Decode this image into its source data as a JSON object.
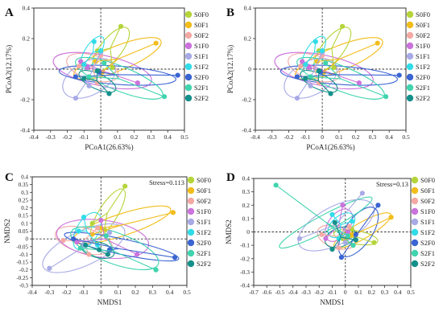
{
  "figure": {
    "legend_labels": [
      "S0F0",
      "S0F1",
      "S0F2",
      "S1F0",
      "S1F1",
      "S1F2",
      "S2F0",
      "S2F1",
      "S2F2"
    ],
    "legend_colors": [
      "#b5d43a",
      "#f2bd1a",
      "#f4a9a4",
      "#cc72dc",
      "#a8aae6",
      "#30dce8",
      "#3a64d2",
      "#40d4ae",
      "#14908a"
    ]
  },
  "chart_data": [
    {
      "panel": "A",
      "type": "scatter",
      "method": "PCoA",
      "xlabel": "PCoA1(26.63%)",
      "ylabel": "PCoA2(12.17%)",
      "xlim": [
        -0.4,
        0.5
      ],
      "ylim": [
        -0.4,
        0.4
      ],
      "xticks": [
        "-0.4",
        "-0.3",
        "-0.2",
        "-0.1",
        "0",
        "0.1",
        "0.2",
        "0.3",
        "0.4",
        "0.5"
      ],
      "yticks": [
        "0.4",
        "0.2",
        "0",
        "-0.2",
        "-0.4"
      ],
      "stress": null,
      "reference_lines": {
        "x": 0,
        "y": 0
      },
      "groups": [
        {
          "label": "S0F0",
          "points": [
            [
              0.12,
              0.28
            ],
            [
              0.07,
              0.01
            ],
            [
              -0.02,
              0.12
            ]
          ],
          "ellipse": {
            "cx": 0.06,
            "cy": 0.13,
            "rx": 0.16,
            "ry": 0.07,
            "angle_deg": 52
          }
        },
        {
          "label": "S0F1",
          "points": [
            [
              0.33,
              0.17
            ],
            [
              -0.03,
              0.05
            ],
            [
              0.01,
              -0.02
            ]
          ],
          "ellipse": {
            "cx": 0.1,
            "cy": 0.07,
            "rx": 0.28,
            "ry": 0.08,
            "angle_deg": 22
          }
        },
        {
          "label": "S0F2",
          "points": [
            [
              -0.13,
              0.02
            ],
            [
              -0.02,
              -0.09
            ],
            [
              0.0,
              0.09
            ]
          ],
          "ellipse": {
            "cx": -0.05,
            "cy": 0.01,
            "rx": 0.16,
            "ry": 0.08,
            "angle_deg": -18
          }
        },
        {
          "label": "S1F0",
          "points": [
            [
              0.22,
              -0.09
            ],
            [
              -0.08,
              0.01
            ],
            [
              -0.12,
              0.05
            ]
          ],
          "ellipse": {
            "cx": 0.01,
            "cy": -0.01,
            "rx": 0.3,
            "ry": 0.1,
            "angle_deg": -12
          }
        },
        {
          "label": "S1F1",
          "points": [
            [
              -0.15,
              -0.19
            ],
            [
              -0.07,
              -0.11
            ],
            [
              0.0,
              0.11
            ]
          ],
          "ellipse": {
            "cx": -0.07,
            "cy": -0.06,
            "rx": 0.17,
            "ry": 0.11,
            "angle_deg": 28
          }
        },
        {
          "label": "S1F2",
          "points": [
            [
              -0.04,
              0.18
            ],
            [
              0.0,
              0.12
            ],
            [
              -0.1,
              0.03
            ]
          ],
          "ellipse": {
            "cx": -0.05,
            "cy": 0.11,
            "rx": 0.11,
            "ry": 0.05,
            "angle_deg": 58
          }
        },
        {
          "label": "S2F0",
          "points": [
            [
              0.46,
              -0.04
            ],
            [
              -0.15,
              -0.05
            ],
            [
              -0.01,
              -0.02
            ]
          ],
          "ellipse": {
            "cx": 0.1,
            "cy": -0.04,
            "rx": 0.35,
            "ry": 0.06,
            "angle_deg": -4
          }
        },
        {
          "label": "S2F1",
          "points": [
            [
              0.38,
              -0.18
            ],
            [
              -0.07,
              -0.05
            ],
            [
              0.02,
              0.04
            ]
          ],
          "ellipse": {
            "cx": 0.11,
            "cy": -0.06,
            "rx": 0.28,
            "ry": 0.08,
            "angle_deg": -22
          }
        },
        {
          "label": "S2F2",
          "points": [
            [
              0.05,
              -0.16
            ],
            [
              -0.1,
              -0.06
            ],
            [
              -0.02,
              -0.01
            ]
          ],
          "ellipse": {
            "cx": -0.02,
            "cy": -0.08,
            "rx": 0.12,
            "ry": 0.05,
            "angle_deg": -25
          }
        }
      ]
    },
    {
      "panel": "B",
      "type": "scatter",
      "method": "PCoA",
      "xlabel": "PCoA1(26.63%)",
      "ylabel": "PCoA2(12.17%)",
      "xlim": [
        -0.4,
        0.5
      ],
      "ylim": [
        -0.4,
        0.4
      ],
      "xticks": [
        "-0.4",
        "-0.3",
        "-0.2",
        "-0.1",
        "0",
        "0.1",
        "0.2",
        "0.3",
        "0.4",
        "0.5"
      ],
      "yticks": [
        "0.4",
        "0.2",
        "0",
        "-0.2",
        "-0.4"
      ],
      "stress": null,
      "reference_lines": {
        "x": 0,
        "y": 0
      },
      "groups": [
        {
          "label": "S0F0",
          "points": [
            [
              0.12,
              0.28
            ],
            [
              0.07,
              0.01
            ],
            [
              -0.02,
              0.12
            ]
          ],
          "ellipse": {
            "cx": 0.06,
            "cy": 0.13,
            "rx": 0.16,
            "ry": 0.07,
            "angle_deg": 52
          }
        },
        {
          "label": "S0F1",
          "points": [
            [
              0.33,
              0.17
            ],
            [
              -0.03,
              0.05
            ],
            [
              0.01,
              -0.02
            ]
          ],
          "ellipse": {
            "cx": 0.1,
            "cy": 0.07,
            "rx": 0.28,
            "ry": 0.08,
            "angle_deg": 22
          }
        },
        {
          "label": "S0F2",
          "points": [
            [
              -0.13,
              0.02
            ],
            [
              -0.02,
              -0.09
            ],
            [
              0.0,
              0.09
            ]
          ],
          "ellipse": {
            "cx": -0.05,
            "cy": 0.01,
            "rx": 0.16,
            "ry": 0.08,
            "angle_deg": -18
          }
        },
        {
          "label": "S1F0",
          "points": [
            [
              0.22,
              -0.09
            ],
            [
              -0.08,
              0.01
            ],
            [
              -0.12,
              0.05
            ]
          ],
          "ellipse": {
            "cx": 0.01,
            "cy": -0.01,
            "rx": 0.3,
            "ry": 0.1,
            "angle_deg": -12
          }
        },
        {
          "label": "S1F1",
          "points": [
            [
              -0.15,
              -0.19
            ],
            [
              -0.07,
              -0.11
            ],
            [
              0.0,
              0.11
            ]
          ],
          "ellipse": {
            "cx": -0.07,
            "cy": -0.06,
            "rx": 0.17,
            "ry": 0.11,
            "angle_deg": 28
          }
        },
        {
          "label": "S1F2",
          "points": [
            [
              -0.04,
              0.18
            ],
            [
              0.0,
              0.12
            ],
            [
              -0.1,
              0.03
            ]
          ],
          "ellipse": {
            "cx": -0.05,
            "cy": 0.11,
            "rx": 0.11,
            "ry": 0.05,
            "angle_deg": 58
          }
        },
        {
          "label": "S2F0",
          "points": [
            [
              0.46,
              -0.04
            ],
            [
              -0.15,
              -0.05
            ],
            [
              -0.01,
              -0.02
            ]
          ],
          "ellipse": {
            "cx": 0.1,
            "cy": -0.04,
            "rx": 0.35,
            "ry": 0.06,
            "angle_deg": -4
          }
        },
        {
          "label": "S2F1",
          "points": [
            [
              0.38,
              -0.18
            ],
            [
              -0.07,
              -0.05
            ],
            [
              0.02,
              0.04
            ]
          ],
          "ellipse": {
            "cx": 0.11,
            "cy": -0.06,
            "rx": 0.28,
            "ry": 0.08,
            "angle_deg": -22
          }
        },
        {
          "label": "S2F2",
          "points": [
            [
              0.05,
              -0.16
            ],
            [
              -0.1,
              -0.06
            ],
            [
              -0.02,
              -0.01
            ]
          ],
          "ellipse": {
            "cx": -0.02,
            "cy": -0.08,
            "rx": 0.12,
            "ry": 0.05,
            "angle_deg": -25
          }
        }
      ]
    },
    {
      "panel": "C",
      "type": "scatter",
      "method": "NMDS",
      "xlabel": "NMDS1",
      "ylabel": "NMDS2",
      "xlim": [
        -0.4,
        0.5
      ],
      "ylim": [
        -0.3,
        0.4
      ],
      "xticks": [
        "-0.4",
        "-0.3",
        "-0.2",
        "-0.1",
        "0",
        "0.1",
        "0.2",
        "0.3",
        "0.4",
        "0.5"
      ],
      "yticks": [
        "0.4",
        "0.35",
        "0.3",
        "0.25",
        "0.2",
        "0.15",
        "0.1",
        "0.05",
        "0",
        "-0.05",
        "-0.1",
        "-0.15",
        "-0.2",
        "-0.25",
        "-0.3"
      ],
      "stress": "Stress=0.113",
      "reference_lines": {
        "x": 0,
        "y": 0
      },
      "groups": [
        {
          "label": "S0F0",
          "points": [
            [
              0.14,
              0.34
            ],
            [
              0.02,
              0.06
            ],
            [
              -0.05,
              0.1
            ]
          ],
          "ellipse": {
            "cx": 0.04,
            "cy": 0.16,
            "rx": 0.17,
            "ry": 0.06,
            "angle_deg": 58
          }
        },
        {
          "label": "S0F1",
          "points": [
            [
              0.42,
              0.17
            ],
            [
              -0.05,
              0.03
            ],
            [
              0.0,
              0.07
            ]
          ],
          "ellipse": {
            "cx": 0.12,
            "cy": 0.09,
            "rx": 0.3,
            "ry": 0.07,
            "angle_deg": 18
          }
        },
        {
          "label": "S0F2",
          "points": [
            [
              -0.22,
              -0.01
            ],
            [
              -0.07,
              -0.1
            ],
            [
              -0.02,
              0.07
            ]
          ],
          "ellipse": {
            "cx": -0.1,
            "cy": -0.01,
            "rx": 0.17,
            "ry": 0.08,
            "angle_deg": -15
          }
        },
        {
          "label": "S1F0",
          "points": [
            [
              0.21,
              -0.1
            ],
            [
              -0.14,
              -0.02
            ],
            [
              0.0,
              0.12
            ]
          ],
          "ellipse": {
            "cx": 0.01,
            "cy": 0.0,
            "rx": 0.27,
            "ry": 0.12,
            "angle_deg": -8
          }
        },
        {
          "label": "S1F1",
          "points": [
            [
              -0.3,
              -0.19
            ],
            [
              -0.1,
              -0.04
            ],
            [
              0.05,
              0.04
            ]
          ],
          "ellipse": {
            "cx": -0.1,
            "cy": -0.06,
            "rx": 0.26,
            "ry": 0.11,
            "angle_deg": 25
          }
        },
        {
          "label": "S1F2",
          "points": [
            [
              -0.1,
              0.14
            ],
            [
              -0.02,
              -0.04
            ],
            [
              -0.13,
              0.05
            ]
          ],
          "ellipse": {
            "cx": -0.08,
            "cy": 0.05,
            "rx": 0.12,
            "ry": 0.07,
            "angle_deg": 60
          }
        },
        {
          "label": "S2F0",
          "points": [
            [
              0.43,
              -0.12
            ],
            [
              -0.16,
              0.0
            ],
            [
              0.05,
              -0.07
            ]
          ],
          "ellipse": {
            "cx": 0.12,
            "cy": -0.05,
            "rx": 0.34,
            "ry": 0.05,
            "angle_deg": -12
          }
        },
        {
          "label": "S2F1",
          "points": [
            [
              0.32,
              -0.2
            ],
            [
              -0.12,
              -0.06
            ],
            [
              0.03,
              0.02
            ]
          ],
          "ellipse": {
            "cx": 0.08,
            "cy": -0.06,
            "rx": 0.27,
            "ry": 0.1,
            "angle_deg": -20
          }
        },
        {
          "label": "S2F2",
          "points": [
            [
              0.04,
              -0.1
            ],
            [
              -0.09,
              -0.04
            ],
            [
              -0.01,
              -0.07
            ]
          ],
          "ellipse": {
            "cx": -0.02,
            "cy": -0.07,
            "rx": 0.1,
            "ry": 0.05,
            "angle_deg": -15
          }
        }
      ]
    },
    {
      "panel": "D",
      "type": "scatter",
      "method": "NMDS",
      "xlabel": "NMDS1",
      "ylabel": "NMDS2",
      "xlim": [
        -0.7,
        0.5
      ],
      "ylim": [
        -0.4,
        0.4
      ],
      "xticks": [
        "-0.7",
        "-0.6",
        "-0.5",
        "-0.4",
        "-0.3",
        "-0.2",
        "-0.1",
        "0",
        "0.1",
        "0.2",
        "0.3",
        "0.4",
        "0.5"
      ],
      "yticks": [
        "0.4",
        "0.3",
        "0.2",
        "0.1",
        "0",
        "-0.1",
        "-0.2",
        "-0.3",
        "-0.4"
      ],
      "stress": "Stress=0.13",
      "reference_lines": {
        "x": 0,
        "y": 0
      },
      "groups": [
        {
          "label": "S0F0",
          "points": [
            [
              0.22,
              -0.08
            ],
            [
              0.05,
              0.02
            ],
            [
              -0.02,
              -0.05
            ]
          ],
          "ellipse": {
            "cx": 0.08,
            "cy": -0.04,
            "rx": 0.17,
            "ry": 0.05,
            "angle_deg": -10
          }
        },
        {
          "label": "S0F1",
          "points": [
            [
              0.35,
              0.11
            ],
            [
              0.05,
              -0.02
            ],
            [
              0.0,
              -0.06
            ]
          ],
          "ellipse": {
            "cx": 0.13,
            "cy": 0.01,
            "rx": 0.25,
            "ry": 0.06,
            "angle_deg": 30
          }
        },
        {
          "label": "S0F2",
          "points": [
            [
              -0.18,
              -0.02
            ],
            [
              -0.05,
              -0.12
            ],
            [
              0.03,
              0.04
            ]
          ],
          "ellipse": {
            "cx": -0.07,
            "cy": -0.04,
            "rx": 0.15,
            "ry": 0.08,
            "angle_deg": -20
          }
        },
        {
          "label": "S1F0",
          "points": [
            [
              -0.02,
              0.2
            ],
            [
              -0.15,
              -0.05
            ],
            [
              0.02,
              0.0
            ]
          ],
          "ellipse": {
            "cx": -0.05,
            "cy": 0.05,
            "rx": 0.14,
            "ry": 0.08,
            "angle_deg": 55
          }
        },
        {
          "label": "S1F1",
          "points": [
            [
              0.13,
              0.29
            ],
            [
              -0.35,
              -0.05
            ],
            [
              0.0,
              -0.08
            ]
          ],
          "ellipse": {
            "cx": -0.07,
            "cy": 0.05,
            "rx": 0.32,
            "ry": 0.14,
            "angle_deg": 28
          }
        },
        {
          "label": "S1F2",
          "points": [
            [
              -0.1,
              0.13
            ],
            [
              -0.05,
              -0.05
            ],
            [
              0.05,
              0.08
            ]
          ],
          "ellipse": {
            "cx": -0.03,
            "cy": 0.05,
            "rx": 0.12,
            "ry": 0.07,
            "angle_deg": 40
          }
        },
        {
          "label": "S2F0",
          "points": [
            [
              0.25,
              0.2
            ],
            [
              -0.03,
              -0.19
            ],
            [
              0.08,
              -0.02
            ]
          ],
          "ellipse": {
            "cx": 0.1,
            "cy": 0.0,
            "rx": 0.22,
            "ry": 0.1,
            "angle_deg": 55
          }
        },
        {
          "label": "S2F1",
          "points": [
            [
              -0.53,
              0.35
            ],
            [
              0.02,
              -0.03
            ],
            [
              0.06,
              -0.1
            ]
          ],
          "ellipse": {
            "cx": -0.15,
            "cy": 0.07,
            "rx": 0.4,
            "ry": 0.06,
            "angle_deg": 28
          }
        },
        {
          "label": "S2F2",
          "points": [
            [
              -0.08,
              0.07
            ],
            [
              -0.1,
              -0.13
            ],
            [
              0.08,
              -0.06
            ]
          ],
          "ellipse": {
            "cx": -0.04,
            "cy": -0.04,
            "rx": 0.12,
            "ry": 0.07,
            "angle_deg": 20
          }
        }
      ]
    }
  ]
}
